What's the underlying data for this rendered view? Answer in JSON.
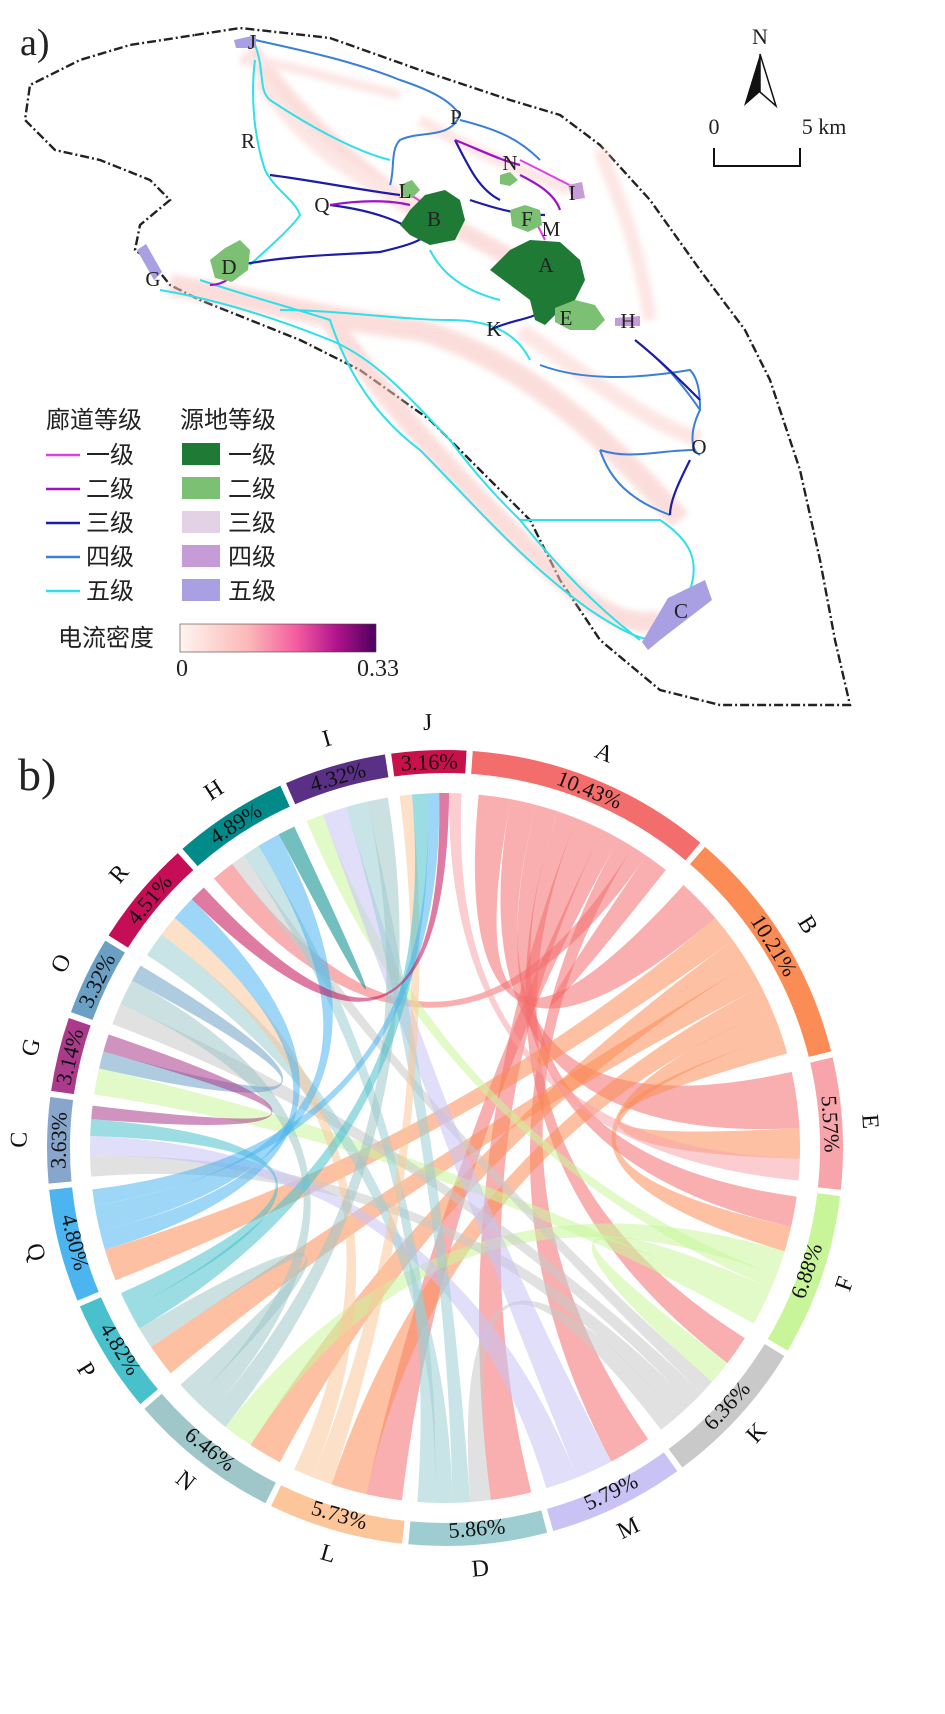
{
  "panel_a": {
    "label": "a)",
    "north": "N",
    "scale": {
      "start": "0",
      "end": "5 km"
    },
    "sites": [
      {
        "id": "J",
        "grade": 5
      },
      {
        "id": "P",
        "grade": 0
      },
      {
        "id": "R",
        "grade": 0
      },
      {
        "id": "N",
        "grade": 0
      },
      {
        "id": "L",
        "grade": 2
      },
      {
        "id": "I",
        "grade": 4
      },
      {
        "id": "Q",
        "grade": 0
      },
      {
        "id": "B",
        "grade": 1
      },
      {
        "id": "F",
        "grade": 2
      },
      {
        "id": "M",
        "grade": 0
      },
      {
        "id": "D",
        "grade": 2
      },
      {
        "id": "A",
        "grade": 1
      },
      {
        "id": "G",
        "grade": 5
      },
      {
        "id": "E",
        "grade": 2
      },
      {
        "id": "H",
        "grade": 4
      },
      {
        "id": "K",
        "grade": 0
      },
      {
        "id": "O",
        "grade": 0
      },
      {
        "id": "C",
        "grade": 5
      }
    ],
    "legend": {
      "corridor_title": "廊道等级",
      "corridor": [
        {
          "label": "一级",
          "color": "#e040e0"
        },
        {
          "label": "二级",
          "color": "#9b12c8"
        },
        {
          "label": "三级",
          "color": "#1c1ca8"
        },
        {
          "label": "四级",
          "color": "#3a7fd8"
        },
        {
          "label": "五级",
          "color": "#2ee0e8"
        }
      ],
      "source_title": "源地等级",
      "source": [
        {
          "label": "一级",
          "color": "#1f7a35"
        },
        {
          "label": "二级",
          "color": "#7cc173"
        },
        {
          "label": "三级",
          "color": "#e3d2e6"
        },
        {
          "label": "四级",
          "color": "#c59bd8"
        },
        {
          "label": "五级",
          "color": "#a99fe3"
        }
      ],
      "current_title": "电流密度",
      "current_min": "0",
      "current_max": "0.33"
    }
  },
  "panel_b": {
    "label": "b)"
  },
  "chart_data": {
    "type": "chord",
    "sectors": [
      {
        "name": "A",
        "percent": "10.43%",
        "value": 10.43,
        "color": "#f46d6d"
      },
      {
        "name": "B",
        "percent": "10.21%",
        "value": 10.21,
        "color": "#fb8c55"
      },
      {
        "name": "E",
        "percent": "5.57%",
        "value": 5.57,
        "color": "#f7a4aa"
      },
      {
        "name": "F",
        "percent": "6.88%",
        "value": 6.88,
        "color": "#c9f59a"
      },
      {
        "name": "K",
        "percent": "6.36%",
        "value": 6.36,
        "color": "#c9c9c9"
      },
      {
        "name": "M",
        "percent": "5.79%",
        "value": 5.79,
        "color": "#c9c2f5"
      },
      {
        "name": "D",
        "percent": "5.86%",
        "value": 5.86,
        "color": "#9dcdd1"
      },
      {
        "name": "L",
        "percent": "5.73%",
        "value": 5.73,
        "color": "#fcc69a"
      },
      {
        "name": "N",
        "percent": "6.46%",
        "value": 6.46,
        "color": "#9fc6c9"
      },
      {
        "name": "P",
        "percent": "4.82%",
        "value": 4.82,
        "color": "#48c1cc"
      },
      {
        "name": "Q",
        "percent": "4.80%",
        "value": 4.8,
        "color": "#4cb4ee"
      },
      {
        "name": "C",
        "percent": "3.63%",
        "value": 3.63,
        "color": "#88a6cc"
      },
      {
        "name": "G",
        "percent": "3.14%",
        "value": 3.14,
        "color": "#a93b8a"
      },
      {
        "name": "O",
        "percent": "3.32%",
        "value": 3.32,
        "color": "#6ba0c4"
      },
      {
        "name": "R",
        "percent": "4.51%",
        "value": 4.51,
        "color": "#c50e55"
      },
      {
        "name": "H",
        "percent": "4.89%",
        "value": 4.89,
        "color": "#008a8a"
      },
      {
        "name": "I",
        "percent": "4.32%",
        "value": 4.32,
        "color": "#5a2f86"
      },
      {
        "name": "J",
        "percent": "3.16%",
        "value": 3.16,
        "color": "#c8104a"
      }
    ],
    "links": [
      {
        "source": "A",
        "target": "B",
        "value": 1.6
      },
      {
        "source": "A",
        "target": "E",
        "value": 1.3
      },
      {
        "source": "A",
        "target": "F",
        "value": 1.1
      },
      {
        "source": "A",
        "target": "K",
        "value": 1.0
      },
      {
        "source": "A",
        "target": "D",
        "value": 1.4
      },
      {
        "source": "A",
        "target": "L",
        "value": 0.9
      },
      {
        "source": "A",
        "target": "M",
        "value": 0.8
      },
      {
        "source": "A",
        "target": "H",
        "value": 0.8
      },
      {
        "source": "A",
        "target": "A",
        "value": 0.6
      },
      {
        "source": "B",
        "target": "Q",
        "value": 1.0
      },
      {
        "source": "B",
        "target": "N",
        "value": 1.0
      },
      {
        "source": "B",
        "target": "P",
        "value": 0.9
      },
      {
        "source": "B",
        "target": "L",
        "value": 0.9
      },
      {
        "source": "B",
        "target": "F",
        "value": 0.9
      },
      {
        "source": "B",
        "target": "E",
        "value": 0.7
      },
      {
        "source": "F",
        "target": "N",
        "value": 0.9
      },
      {
        "source": "F",
        "target": "I",
        "value": 0.5
      },
      {
        "source": "F",
        "target": "K",
        "value": 0.8
      },
      {
        "source": "F",
        "target": "G",
        "value": 0.6
      },
      {
        "source": "K",
        "target": "H",
        "value": 0.5
      },
      {
        "source": "K",
        "target": "O",
        "value": 0.5
      },
      {
        "source": "K",
        "target": "C",
        "value": 0.6
      },
      {
        "source": "K",
        "target": "D",
        "value": 0.7
      },
      {
        "source": "M",
        "target": "I",
        "value": 0.7
      },
      {
        "source": "M",
        "target": "C",
        "value": 0.6
      },
      {
        "source": "D",
        "target": "I",
        "value": 0.6
      },
      {
        "source": "D",
        "target": "R",
        "value": 0.6
      },
      {
        "source": "D",
        "target": "H",
        "value": 0.6
      },
      {
        "source": "L",
        "target": "J",
        "value": 0.5
      },
      {
        "source": "L",
        "target": "R",
        "value": 0.5
      },
      {
        "source": "N",
        "target": "I",
        "value": 0.6
      },
      {
        "source": "N",
        "target": "O",
        "value": 0.6
      },
      {
        "source": "N",
        "target": "P",
        "value": 0.6
      },
      {
        "source": "P",
        "target": "J",
        "value": 0.6
      },
      {
        "source": "P",
        "target": "C",
        "value": 0.5
      },
      {
        "source": "Q",
        "target": "R",
        "value": 0.6
      },
      {
        "source": "Q",
        "target": "H",
        "value": 0.8
      },
      {
        "source": "Q",
        "target": "J",
        "value": 0.5
      },
      {
        "source": "O",
        "target": "G",
        "value": 0.4
      },
      {
        "source": "G",
        "target": "C",
        "value": 0.4
      },
      {
        "source": "R",
        "target": "J",
        "value": 0.4
      },
      {
        "source": "H",
        "target": "H",
        "value": 0.3
      },
      {
        "source": "E",
        "target": "J",
        "value": 0.5
      }
    ]
  }
}
